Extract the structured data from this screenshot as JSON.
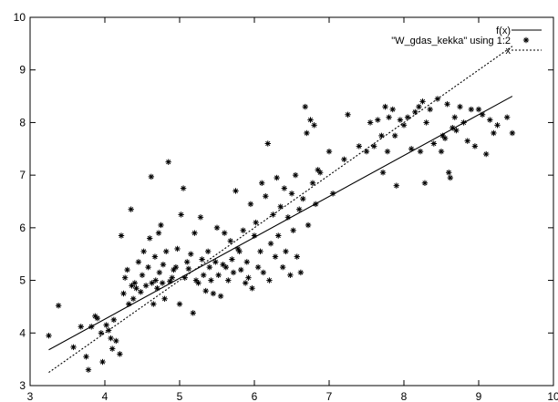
{
  "chart_data": {
    "type": "scatter",
    "title": "",
    "xlabel": "",
    "ylabel": "",
    "xlim": [
      3,
      10
    ],
    "ylim": [
      3,
      10
    ],
    "grid": false,
    "legend_placement": "top-right",
    "x_ticks": [
      3,
      4,
      5,
      6,
      7,
      8,
      9,
      10
    ],
    "y_ticks": [
      3,
      4,
      5,
      6,
      7,
      8,
      9,
      10
    ],
    "series": [
      {
        "name": "f(x)",
        "style": "solid-line",
        "x": [
          3.25,
          9.45
        ],
        "y": [
          3.68,
          8.5
        ]
      },
      {
        "name": "\"W_gdas_kekka\" using 1:2",
        "style": "star-markers",
        "points": [
          [
            3.25,
            3.95
          ],
          [
            3.38,
            4.52
          ],
          [
            3.58,
            3.73
          ],
          [
            3.68,
            4.12
          ],
          [
            3.75,
            3.55
          ],
          [
            3.78,
            3.3
          ],
          [
            3.82,
            4.12
          ],
          [
            3.87,
            4.32
          ],
          [
            3.9,
            4.28
          ],
          [
            3.95,
            4.0
          ],
          [
            3.97,
            3.45
          ],
          [
            4.02,
            4.15
          ],
          [
            4.05,
            4.05
          ],
          [
            4.08,
            3.9
          ],
          [
            4.1,
            3.7
          ],
          [
            4.12,
            4.25
          ],
          [
            4.15,
            3.85
          ],
          [
            4.2,
            3.6
          ],
          [
            4.22,
            5.85
          ],
          [
            4.25,
            4.75
          ],
          [
            4.27,
            5.05
          ],
          [
            4.3,
            5.2
          ],
          [
            4.32,
            4.55
          ],
          [
            4.35,
            6.35
          ],
          [
            4.36,
            4.9
          ],
          [
            4.38,
            4.65
          ],
          [
            4.4,
            4.95
          ],
          [
            4.42,
            4.85
          ],
          [
            4.45,
            5.35
          ],
          [
            4.48,
            4.78
          ],
          [
            4.5,
            5.1
          ],
          [
            4.52,
            5.55
          ],
          [
            4.55,
            4.9
          ],
          [
            4.58,
            5.25
          ],
          [
            4.6,
            5.8
          ],
          [
            4.62,
            6.97
          ],
          [
            4.63,
            4.95
          ],
          [
            4.65,
            4.55
          ],
          [
            4.67,
            5.45
          ],
          [
            4.68,
            5.0
          ],
          [
            4.7,
            4.85
          ],
          [
            4.72,
            5.9
          ],
          [
            4.73,
            5.15
          ],
          [
            4.75,
            6.05
          ],
          [
            4.77,
            4.95
          ],
          [
            4.78,
            5.3
          ],
          [
            4.8,
            4.65
          ],
          [
            4.82,
            5.55
          ],
          [
            4.85,
            7.25
          ],
          [
            4.87,
            4.98
          ],
          [
            4.9,
            5.05
          ],
          [
            4.92,
            5.2
          ],
          [
            4.95,
            5.25
          ],
          [
            4.97,
            5.6
          ],
          [
            5.0,
            4.55
          ],
          [
            5.02,
            6.25
          ],
          [
            5.05,
            6.75
          ],
          [
            5.07,
            5.05
          ],
          [
            5.1,
            5.35
          ],
          [
            5.12,
            5.22
          ],
          [
            5.15,
            5.5
          ],
          [
            5.18,
            4.38
          ],
          [
            5.2,
            5.9
          ],
          [
            5.22,
            5.0
          ],
          [
            5.25,
            4.95
          ],
          [
            5.28,
            6.2
          ],
          [
            5.3,
            5.4
          ],
          [
            5.32,
            5.1
          ],
          [
            5.35,
            4.8
          ],
          [
            5.38,
            5.55
          ],
          [
            5.4,
            5.25
          ],
          [
            5.42,
            5.0
          ],
          [
            5.45,
            4.75
          ],
          [
            5.48,
            5.35
          ],
          [
            5.5,
            6.0
          ],
          [
            5.52,
            5.1
          ],
          [
            5.55,
            4.7
          ],
          [
            5.58,
            5.3
          ],
          [
            5.6,
            5.9
          ],
          [
            5.62,
            5.25
          ],
          [
            5.65,
            5.0
          ],
          [
            5.68,
            5.75
          ],
          [
            5.7,
            5.4
          ],
          [
            5.72,
            5.15
          ],
          [
            5.75,
            6.7
          ],
          [
            5.78,
            5.6
          ],
          [
            5.8,
            5.55
          ],
          [
            5.82,
            5.2
          ],
          [
            5.85,
            5.95
          ],
          [
            5.88,
            4.95
          ],
          [
            5.9,
            5.35
          ],
          [
            5.92,
            5.05
          ],
          [
            5.95,
            6.45
          ],
          [
            5.97,
            4.85
          ],
          [
            6.0,
            5.85
          ],
          [
            6.02,
            6.1
          ],
          [
            6.05,
            5.25
          ],
          [
            6.08,
            5.55
          ],
          [
            6.1,
            6.85
          ],
          [
            6.12,
            5.15
          ],
          [
            6.15,
            6.6
          ],
          [
            6.18,
            7.6
          ],
          [
            6.2,
            5.0
          ],
          [
            6.22,
            5.7
          ],
          [
            6.25,
            6.25
          ],
          [
            6.28,
            5.45
          ],
          [
            6.3,
            6.95
          ],
          [
            6.32,
            5.85
          ],
          [
            6.35,
            6.4
          ],
          [
            6.38,
            5.25
          ],
          [
            6.4,
            6.75
          ],
          [
            6.42,
            5.55
          ],
          [
            6.45,
            6.2
          ],
          [
            6.48,
            5.1
          ],
          [
            6.5,
            6.65
          ],
          [
            6.52,
            5.95
          ],
          [
            6.55,
            7.0
          ],
          [
            6.57,
            5.45
          ],
          [
            6.6,
            6.35
          ],
          [
            6.62,
            5.15
          ],
          [
            6.65,
            6.55
          ],
          [
            6.68,
            8.3
          ],
          [
            6.7,
            7.8
          ],
          [
            6.72,
            6.05
          ],
          [
            6.75,
            8.05
          ],
          [
            6.78,
            6.85
          ],
          [
            6.8,
            7.95
          ],
          [
            6.82,
            6.45
          ],
          [
            6.85,
            7.1
          ],
          [
            6.88,
            7.05
          ],
          [
            7.0,
            7.45
          ],
          [
            7.05,
            6.65
          ],
          [
            7.2,
            7.3
          ],
          [
            7.25,
            8.15
          ],
          [
            7.4,
            7.55
          ],
          [
            7.5,
            7.45
          ],
          [
            7.55,
            8.0
          ],
          [
            7.6,
            7.55
          ],
          [
            7.65,
            8.05
          ],
          [
            7.7,
            7.75
          ],
          [
            7.72,
            7.05
          ],
          [
            7.75,
            8.3
          ],
          [
            7.78,
            7.45
          ],
          [
            7.8,
            8.1
          ],
          [
            7.85,
            8.25
          ],
          [
            7.88,
            7.75
          ],
          [
            7.9,
            6.8
          ],
          [
            7.95,
            8.05
          ],
          [
            8.0,
            7.95
          ],
          [
            8.05,
            8.1
          ],
          [
            8.1,
            7.5
          ],
          [
            8.15,
            8.2
          ],
          [
            8.2,
            8.3
          ],
          [
            8.22,
            7.45
          ],
          [
            8.25,
            8.4
          ],
          [
            8.28,
            6.85
          ],
          [
            8.3,
            8.0
          ],
          [
            8.35,
            8.25
          ],
          [
            8.4,
            7.6
          ],
          [
            8.45,
            8.45
          ],
          [
            8.5,
            7.45
          ],
          [
            8.52,
            7.75
          ],
          [
            8.55,
            7.7
          ],
          [
            8.58,
            8.35
          ],
          [
            8.6,
            7.05
          ],
          [
            8.62,
            6.95
          ],
          [
            8.65,
            7.9
          ],
          [
            8.68,
            8.1
          ],
          [
            8.7,
            7.85
          ],
          [
            8.75,
            8.3
          ],
          [
            8.8,
            8.0
          ],
          [
            8.85,
            7.65
          ],
          [
            8.9,
            8.25
          ],
          [
            8.95,
            7.55
          ],
          [
            9.0,
            8.25
          ],
          [
            9.05,
            8.15
          ],
          [
            9.1,
            7.4
          ],
          [
            9.15,
            8.05
          ],
          [
            9.2,
            7.8
          ],
          [
            9.25,
            7.95
          ],
          [
            9.38,
            8.1
          ],
          [
            9.45,
            7.8
          ]
        ]
      },
      {
        "name": "x",
        "style": "dotted-line",
        "x": [
          3.25,
          9.45
        ],
        "y": [
          3.25,
          9.45
        ]
      }
    ]
  }
}
